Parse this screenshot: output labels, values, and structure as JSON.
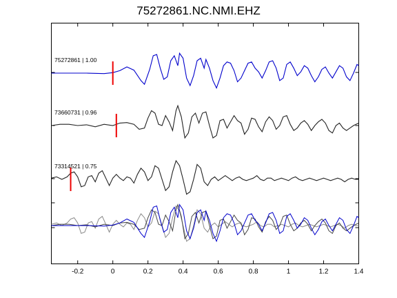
{
  "title": "75272861.NC.NMI.EHZ",
  "chart_data": {
    "type": "line",
    "title": "75272861.NC.NMI.EHZ",
    "xlabel": "",
    "ylabel": "",
    "xlim": [
      -0.35,
      1.4
    ],
    "x_ticks": [
      "-0.2",
      "0",
      "0.2",
      "0.4",
      "0.6",
      "0.8",
      "1",
      "1.2",
      "1.4"
    ],
    "x_tick_values": [
      -0.2,
      0,
      0.2,
      0.4,
      0.6,
      0.8,
      1.0,
      1.2,
      1.4
    ],
    "grid": false,
    "series": [
      {
        "name": "75272861 | 1.00",
        "color": "#0000cc",
        "pick_time": 0.0,
        "x": [
          -0.35,
          -0.25,
          -0.15,
          -0.05,
          0.0,
          0.04,
          0.08,
          0.12,
          0.16,
          0.18,
          0.21,
          0.23,
          0.25,
          0.27,
          0.29,
          0.31,
          0.33,
          0.35,
          0.37,
          0.38,
          0.4,
          0.42,
          0.44,
          0.46,
          0.48,
          0.5,
          0.52,
          0.53,
          0.55,
          0.57,
          0.59,
          0.61,
          0.63,
          0.65,
          0.67,
          0.69,
          0.71,
          0.73,
          0.75,
          0.77,
          0.79,
          0.81,
          0.83,
          0.85,
          0.87,
          0.89,
          0.91,
          0.93,
          0.95,
          0.97,
          0.99,
          1.01,
          1.03,
          1.05,
          1.07,
          1.09,
          1.11,
          1.13,
          1.15,
          1.17,
          1.19,
          1.21,
          1.23,
          1.25,
          1.27,
          1.29,
          1.31,
          1.33,
          1.35,
          1.37,
          1.39,
          1.4
        ],
        "y": [
          0,
          0,
          0,
          -0.02,
          0.02,
          0.1,
          0.25,
          0.12,
          -0.3,
          -0.45,
          0.15,
          0.7,
          0.75,
          0.2,
          -0.25,
          -0.15,
          0.5,
          0.7,
          0.3,
          0.8,
          0.6,
          -0.2,
          -0.5,
          -0.1,
          0.5,
          0.6,
          0.2,
          0.55,
          0.2,
          -0.3,
          -0.6,
          -0.2,
          0.3,
          0.45,
          0.4,
          0.1,
          -0.35,
          -0.2,
          0.1,
          0.4,
          0.45,
          0.2,
          0.05,
          -0.2,
          0.1,
          0.45,
          0.5,
          0.2,
          -0.3,
          -0.2,
          0.35,
          0.45,
          0.2,
          -0.1,
          0.05,
          0.3,
          0.2,
          -0.1,
          -0.35,
          -0.15,
          0.15,
          0.25,
          0.0,
          -0.2,
          0.05,
          0.3,
          0.2,
          -0.15,
          -0.3,
          0.0,
          0.35,
          0.3
        ]
      },
      {
        "name": "73660731 | 0.96",
        "color": "#222222",
        "pick_time": 0.02,
        "x": [
          -0.35,
          -0.3,
          -0.25,
          -0.2,
          -0.15,
          -0.1,
          -0.05,
          0.0,
          0.04,
          0.08,
          0.12,
          0.15,
          0.18,
          0.2,
          0.22,
          0.24,
          0.26,
          0.28,
          0.3,
          0.32,
          0.34,
          0.36,
          0.37,
          0.39,
          0.41,
          0.43,
          0.45,
          0.47,
          0.49,
          0.51,
          0.53,
          0.55,
          0.57,
          0.59,
          0.61,
          0.63,
          0.65,
          0.67,
          0.69,
          0.71,
          0.73,
          0.75,
          0.77,
          0.79,
          0.81,
          0.83,
          0.85,
          0.87,
          0.89,
          0.91,
          0.93,
          0.95,
          0.97,
          0.99,
          1.01,
          1.03,
          1.05,
          1.07,
          1.09,
          1.11,
          1.13,
          1.15,
          1.17,
          1.19,
          1.21,
          1.23,
          1.25,
          1.27,
          1.29,
          1.31,
          1.33,
          1.35,
          1.37,
          1.4
        ],
        "y": [
          0,
          0.05,
          0.05,
          0.0,
          0.03,
          -0.05,
          0.05,
          0.0,
          0.1,
          0.12,
          0.05,
          -0.15,
          -0.1,
          0.3,
          0.6,
          0.5,
          0.05,
          0.0,
          0.4,
          0.15,
          -0.2,
          0.6,
          0.8,
          0.35,
          -0.5,
          -0.3,
          0.35,
          0.5,
          0.1,
          0.5,
          0.55,
          0.0,
          -0.5,
          -0.4,
          0.2,
          0.25,
          -0.1,
          0.15,
          0.4,
          0.2,
          0.1,
          -0.35,
          -0.15,
          0.3,
          0.25,
          -0.05,
          -0.25,
          0.15,
          0.35,
          0.2,
          -0.15,
          0.0,
          0.35,
          0.4,
          0.05,
          -0.2,
          -0.1,
          0.1,
          0.2,
          0.05,
          -0.2,
          0.0,
          0.15,
          0.25,
          0.1,
          -0.2,
          -0.3,
          0.0,
          0.1,
          -0.1,
          -0.2,
          -0.1,
          0.0,
          0.1
        ]
      },
      {
        "name": "73314521 | 0.75",
        "color": "#222222",
        "pick_time": -0.24,
        "x": [
          -0.35,
          -0.32,
          -0.29,
          -0.26,
          -0.24,
          -0.22,
          -0.2,
          -0.18,
          -0.16,
          -0.14,
          -0.12,
          -0.1,
          -0.08,
          -0.06,
          -0.04,
          -0.02,
          0.0,
          0.02,
          0.04,
          0.06,
          0.08,
          0.1,
          0.12,
          0.14,
          0.16,
          0.18,
          0.2,
          0.22,
          0.24,
          0.26,
          0.28,
          0.3,
          0.32,
          0.34,
          0.36,
          0.38,
          0.4,
          0.42,
          0.44,
          0.46,
          0.48,
          0.5,
          0.52,
          0.54,
          0.56,
          0.58,
          0.6,
          0.62,
          0.64,
          0.66,
          0.68,
          0.7,
          0.72,
          0.74,
          0.76,
          0.78,
          0.8,
          0.82,
          0.84,
          0.86,
          0.88,
          0.9,
          0.92,
          0.94,
          0.96,
          0.98,
          1.0,
          1.02,
          1.04,
          1.06,
          1.08,
          1.1,
          1.12,
          1.14,
          1.16,
          1.18,
          1.2,
          1.22,
          1.24,
          1.26,
          1.28,
          1.3,
          1.32,
          1.34,
          1.36,
          1.38,
          1.4
        ],
        "y": [
          0.05,
          0.1,
          0.0,
          0.1,
          0.25,
          0.3,
          0.1,
          -0.3,
          -0.25,
          0.1,
          0.15,
          -0.1,
          0.25,
          0.35,
          0.05,
          -0.25,
          0.05,
          0.2,
          0.05,
          -0.05,
          0.1,
          0.05,
          -0.15,
          0.2,
          0.45,
          0.3,
          -0.05,
          0.1,
          0.55,
          0.45,
          0.0,
          -0.45,
          -0.3,
          0.3,
          0.75,
          0.55,
          0.0,
          -0.6,
          -0.5,
          0.0,
          0.6,
          0.45,
          -0.1,
          -0.25,
          0.0,
          0.1,
          -0.05,
          0.05,
          0.15,
          0.05,
          -0.05,
          0.05,
          0.1,
          0.0,
          -0.05,
          0.0,
          0.05,
          0.15,
          0.0,
          -0.05,
          0.05,
          0.05,
          -0.05,
          0.0,
          0.05,
          0.0,
          -0.05,
          0.05,
          0.1,
          0.0,
          -0.05,
          0.0,
          0.05,
          0.0,
          -0.05,
          0.0,
          0.05,
          0.0,
          -0.05,
          0.0,
          0.05,
          0.0,
          -0.1,
          0.0,
          0.05,
          0.0,
          0.0
        ]
      }
    ],
    "overlay": {
      "series_indices": [
        0,
        1,
        2
      ],
      "colors": [
        "#0000cc",
        "#444444",
        "#888888"
      ]
    }
  }
}
